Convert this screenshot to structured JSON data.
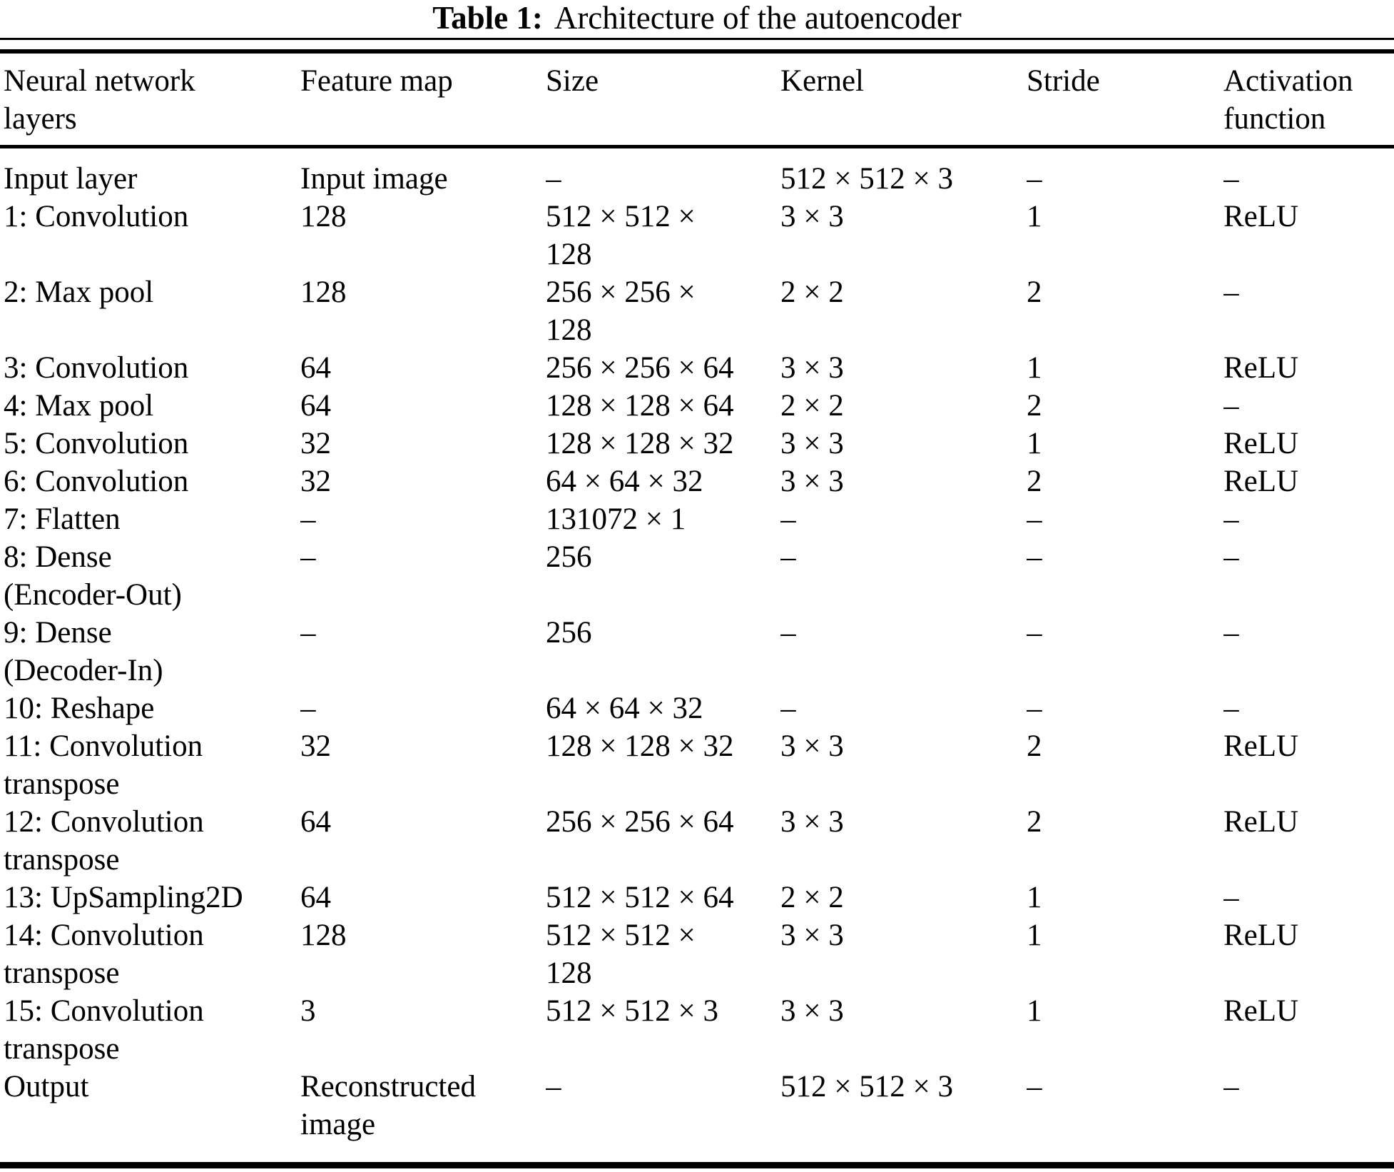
{
  "title": {
    "label": "Table 1:",
    "text": "Architecture of the autoencoder"
  },
  "table": {
    "headers": [
      "Neural network\nlayers",
      "Feature map",
      "Size",
      "Kernel",
      "Stride",
      "Activation\nfunction"
    ],
    "rows": [
      {
        "layer": "Input layer",
        "feature_map": "Input image",
        "size": "–",
        "kernel": "512 × 512 × 3",
        "stride": "–",
        "activation": "–"
      },
      {
        "layer": "1: Convolution",
        "feature_map": "128",
        "size": "512 × 512 ×\n128",
        "kernel": "3 × 3",
        "stride": "1",
        "activation": "ReLU"
      },
      {
        "layer": "2: Max pool",
        "feature_map": "128",
        "size": "256 × 256 ×\n128",
        "kernel": "2 × 2",
        "stride": "2",
        "activation": "–"
      },
      {
        "layer": "3: Convolution",
        "feature_map": "64",
        "size": "256 × 256 × 64",
        "kernel": "3 × 3",
        "stride": "1",
        "activation": "ReLU"
      },
      {
        "layer": "4: Max pool",
        "feature_map": "64",
        "size": "128 × 128 × 64",
        "kernel": "2 × 2",
        "stride": "2",
        "activation": "–"
      },
      {
        "layer": "5: Convolution",
        "feature_map": "32",
        "size": "128 × 128 × 32",
        "kernel": "3 × 3",
        "stride": "1",
        "activation": "ReLU"
      },
      {
        "layer": "6: Convolution",
        "feature_map": "32",
        "size": "64 × 64 × 32",
        "kernel": "3 × 3",
        "stride": "2",
        "activation": "ReLU"
      },
      {
        "layer": "7: Flatten",
        "feature_map": "–",
        "size": "131072 × 1",
        "kernel": "–",
        "stride": "–",
        "activation": "–"
      },
      {
        "layer": "8: Dense\n(Encoder-Out)",
        "feature_map": "–",
        "size": "256",
        "kernel": "–",
        "stride": "–",
        "activation": "–"
      },
      {
        "layer": "9: Dense\n(Decoder-In)",
        "feature_map": "–",
        "size": "256",
        "kernel": "–",
        "stride": "–",
        "activation": "–"
      },
      {
        "layer": "10: Reshape",
        "feature_map": "–",
        "size": "64 × 64 × 32",
        "kernel": "–",
        "stride": "–",
        "activation": "–"
      },
      {
        "layer": "11: Convolution\ntranspose",
        "feature_map": "32",
        "size": "128 × 128 × 32",
        "kernel": "3 × 3",
        "stride": "2",
        "activation": "ReLU"
      },
      {
        "layer": "12: Convolution\ntranspose",
        "feature_map": "64",
        "size": "256 × 256 × 64",
        "kernel": "3 × 3",
        "stride": "2",
        "activation": "ReLU"
      },
      {
        "layer": "13: UpSampling2D",
        "feature_map": "64",
        "size": "512 × 512 × 64",
        "kernel": "2 × 2",
        "stride": "1",
        "activation": "–"
      },
      {
        "layer": "14: Convolution\ntranspose",
        "feature_map": "128",
        "size": "512 × 512 ×\n128",
        "kernel": "3 × 3",
        "stride": "1",
        "activation": "ReLU"
      },
      {
        "layer": "15: Convolution\ntranspose",
        "feature_map": "3",
        "size": "512 × 512 × 3",
        "kernel": "3 × 3",
        "stride": "1",
        "activation": "ReLU"
      },
      {
        "layer": "Output",
        "feature_map": "Reconstructed\nimage",
        "size": "–",
        "kernel": "512 × 512 × 3",
        "stride": "–",
        "activation": "–"
      }
    ]
  }
}
